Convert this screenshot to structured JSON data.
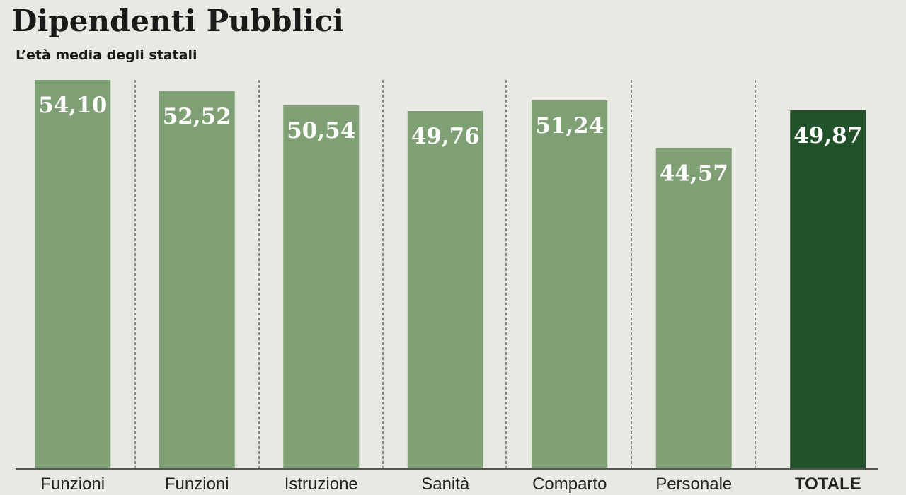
{
  "chart_data": {
    "type": "bar",
    "title": "Dipendenti Pubblici",
    "subtitle": "L’età media degli statali",
    "categories": [
      "Funzioni",
      "Funzioni",
      "Istruzione",
      "Sanità",
      "Comparto",
      "Personale",
      "TOTALE"
    ],
    "values": [
      54.1,
      52.52,
      50.54,
      49.76,
      51.24,
      44.57,
      49.87
    ],
    "value_labels": [
      "54,10",
      "52,52",
      "50,54",
      "49,76",
      "51,24",
      "44,57",
      "49,87"
    ],
    "colors": [
      "#7fa074",
      "#7fa074",
      "#7fa074",
      "#7fa074",
      "#7fa074",
      "#7fa074",
      "#21522a"
    ]
  }
}
